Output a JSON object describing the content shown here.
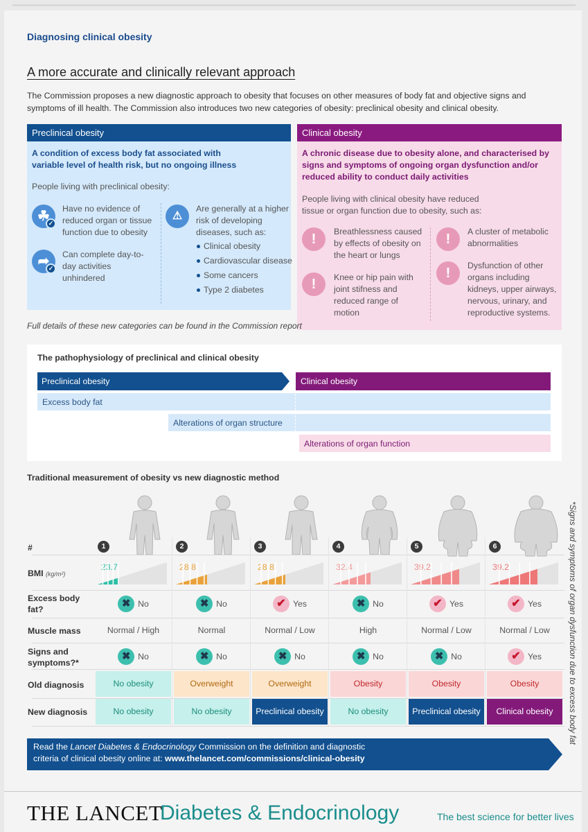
{
  "section_title": "Diagnosing clinical obesity",
  "subtitle": "A more accurate and clinically relevant approach",
  "intro": "The Commission proposes a new diagnostic approach to obesity that focuses on other measures of body fat and objective signs and symptoms of ill health. The Commission also introduces two new categories of obesity: preclinical obesity and clinical obesity.",
  "preclinical": {
    "header": "Preclinical obesity",
    "definition": "A condition of excess body fat associated with variable level of health risk, but no ongoing illness",
    "people_label": "People living with preclinical obesity:",
    "item1": "Have no evidence of reduced organ or tissue function due to obesity",
    "item2": "Can complete day-to-day activities unhindered",
    "item3": "Are generally at a higher risk of developing diseases, such as:",
    "diseases": [
      "Clinical obesity",
      "Cardiovascular disease",
      "Some cancers",
      "Type 2 diabetes"
    ]
  },
  "clinical": {
    "header": "Clinical obesity",
    "definition": "A chronic disease due to obesity alone, and characterised by signs and symptoms of ongoing organ dysfunction and/or reduced ability to conduct daily activities",
    "people_label": "People living with clinical obesity have reduced tissue or organ function due to obesity, such as:",
    "item1": "Breathlessness caused by effects of obesity on the heart or lungs",
    "item2": "Knee or hip pain with joint stifness and reduced range of motion",
    "item3": "A cluster of metabolic abnormalities",
    "item4": "Dysfunction of other organs including kidneys, upper airways, nervous, urinary, and reproductive systems."
  },
  "footnote": "Full details of these new categories can be found in the Commission report",
  "patho": {
    "title": "The pathophysiology of preclinical and clinical obesity",
    "pre_label": "Preclinical obesity",
    "clin_label": "Clinical obesity",
    "row1": "Excess body fat",
    "row2": "Alterations of organ structure",
    "row3": "Alterations of organ function"
  },
  "comparison": {
    "title": "Traditional measurement of obesity vs new diagnostic method",
    "label_num": "#",
    "label_bmi": "BMI",
    "label_bmi_unit": "(kg/m²)",
    "label_fat": "Excess body fat?",
    "label_muscle": "Muscle mass",
    "label_signs": "Signs and symptoms?*",
    "label_old": "Old diagnosis",
    "label_new": "New diagnosis",
    "people": [
      {
        "num": "1",
        "bmi": "23.7",
        "bmi_fill": 0.3,
        "bmi_color": "#2fbfa7",
        "fat": "No",
        "muscle": "Normal / High",
        "signs": "No",
        "old": "No obesity",
        "new": "No obesity"
      },
      {
        "num": "2",
        "bmi": "28.8",
        "bmi_fill": 0.45,
        "bmi_color": "#e9a23b",
        "fat": "No",
        "muscle": "Normal",
        "signs": "No",
        "old": "Overweight",
        "new": "No obesity"
      },
      {
        "num": "3",
        "bmi": "28.8",
        "bmi_fill": 0.45,
        "bmi_color": "#e9a23b",
        "fat": "Yes",
        "muscle": "Normal / Low",
        "signs": "No",
        "old": "Overweight",
        "new": "Preclinical obesity"
      },
      {
        "num": "4",
        "bmi": "32.4",
        "bmi_fill": 0.55,
        "bmi_color": "#f39a9a",
        "fat": "No",
        "muscle": "High",
        "signs": "No",
        "old": "Obesity",
        "new": "No obesity"
      },
      {
        "num": "5",
        "bmi": "39.2",
        "bmi_fill": 0.7,
        "bmi_color": "#f08a8a",
        "fat": "Yes",
        "muscle": "Normal / Low",
        "signs": "No",
        "old": "Obesity",
        "new": "Preclinical obesity"
      },
      {
        "num": "6",
        "bmi": "39.2",
        "bmi_fill": 0.7,
        "bmi_color": "#ee7878",
        "fat": "Yes",
        "muscle": "Normal / Low",
        "signs": "Yes",
        "old": "Obesity",
        "new": "Clinical obesity"
      }
    ],
    "side_note": "*Signs and symptoms of organ dysfunction due to excess body fat"
  },
  "cta": {
    "line1_pre": "Read the ",
    "line1_italic": "Lancet Diabetes & Endocrinology",
    "line1_post": " Commission on the definition and diagnostic",
    "line2_pre": "criteria of clinical obesity online at: ",
    "url": "www.thelancet.com/commissions/clinical-obesity"
  },
  "footer": {
    "brand": "THE LANCET",
    "journal": "Diabetes & Endocrinology",
    "tagline": "The best science for better lives"
  }
}
